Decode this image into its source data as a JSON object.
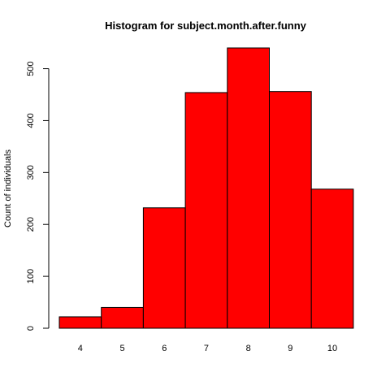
{
  "chart_data": {
    "type": "bar",
    "title": "Histogram for subject.month.after.funny",
    "xlabel": "",
    "ylabel": "Count of individuals",
    "categories": [
      "4",
      "5",
      "6",
      "7",
      "8",
      "9",
      "10"
    ],
    "values": [
      22,
      40,
      232,
      454,
      540,
      456,
      268
    ],
    "ylim": [
      0,
      540
    ],
    "yticks": [
      0,
      100,
      200,
      300,
      400,
      500
    ],
    "bar_color": "#ff0000",
    "bar_edge_color": "#000000",
    "grid": false
  }
}
